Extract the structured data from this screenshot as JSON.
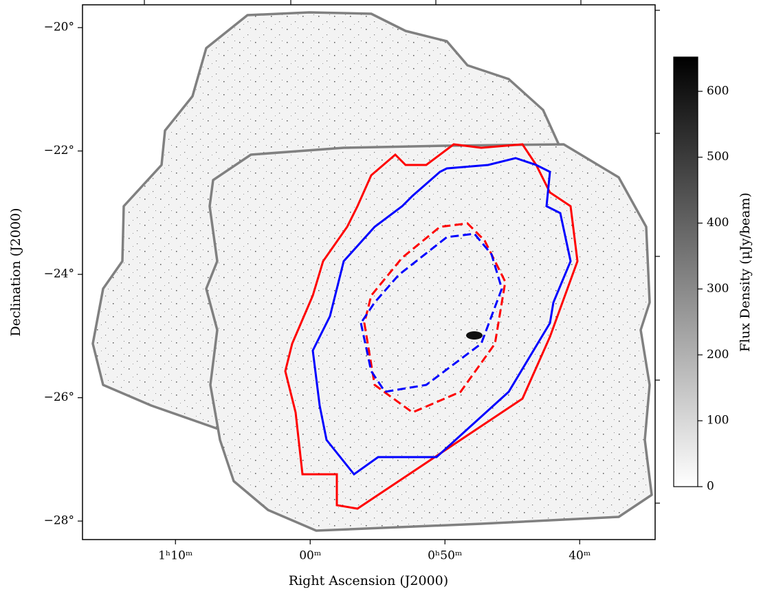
{
  "chart_data": {
    "type": "image",
    "xlabel": "Right Ascension (J2000)",
    "ylabel": "Declination (J2000)",
    "xlim": [
      76.9,
      34.4
    ],
    "xticks": [
      {
        "value": 70,
        "label": "1ʰ10ᵐ"
      },
      {
        "value": 60,
        "label": "00ᵐ"
      },
      {
        "value": 50,
        "label": "0ʰ50ᵐ"
      },
      {
        "value": 40,
        "label": "40ᵐ"
      }
    ],
    "ylim": [
      -28.3,
      -19.63
    ],
    "yticks": [
      {
        "value": -20,
        "label": "−20°"
      },
      {
        "value": -22,
        "label": "−22°"
      },
      {
        "value": -24,
        "label": "−24°"
      },
      {
        "value": -26,
        "label": "−26°"
      },
      {
        "value": -28,
        "label": "−28°"
      }
    ],
    "colorbar": {
      "label": "Flux Density (μJy/beam)",
      "lim": [
        0,
        652
      ],
      "ticks": [
        0,
        100,
        200,
        300,
        400,
        500,
        600
      ]
    }
  }
}
